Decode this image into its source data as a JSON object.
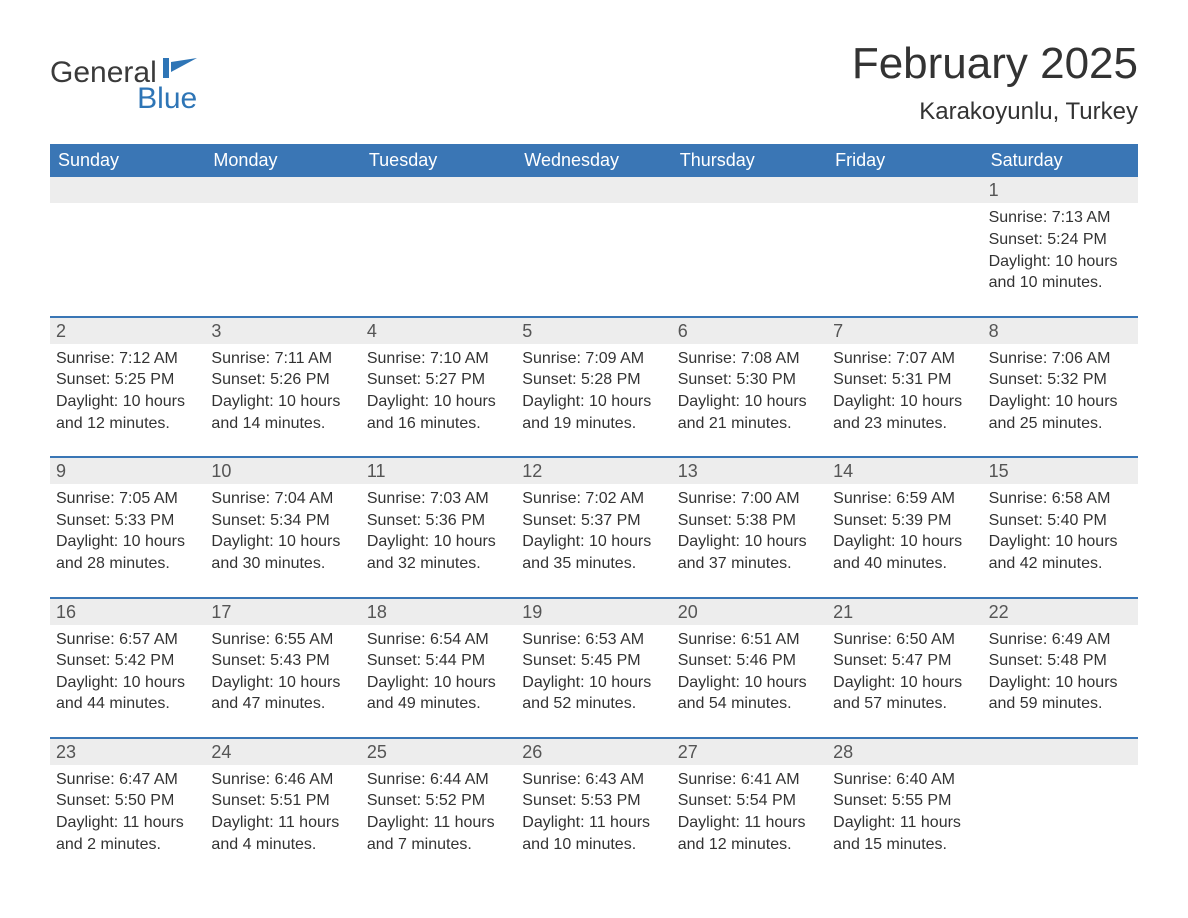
{
  "logo": {
    "general": "General",
    "blue": "Blue",
    "flag_color": "#2e75b6"
  },
  "title": "February 2025",
  "location": "Karakoyunlu, Turkey",
  "header_bg": "#3a76b5",
  "header_text_color": "#ffffff",
  "daynum_bg": "#ededed",
  "week_border_color": "#3a76b5",
  "weekdays": [
    "Sunday",
    "Monday",
    "Tuesday",
    "Wednesday",
    "Thursday",
    "Friday",
    "Saturday"
  ],
  "weeks": [
    [
      {
        "n": null
      },
      {
        "n": null
      },
      {
        "n": null
      },
      {
        "n": null
      },
      {
        "n": null
      },
      {
        "n": null
      },
      {
        "n": 1,
        "sunrise": "Sunrise: 7:13 AM",
        "sunset": "Sunset: 5:24 PM",
        "day1": "Daylight: 10 hours",
        "day2": "and 10 minutes."
      }
    ],
    [
      {
        "n": 2,
        "sunrise": "Sunrise: 7:12 AM",
        "sunset": "Sunset: 5:25 PM",
        "day1": "Daylight: 10 hours",
        "day2": "and 12 minutes."
      },
      {
        "n": 3,
        "sunrise": "Sunrise: 7:11 AM",
        "sunset": "Sunset: 5:26 PM",
        "day1": "Daylight: 10 hours",
        "day2": "and 14 minutes."
      },
      {
        "n": 4,
        "sunrise": "Sunrise: 7:10 AM",
        "sunset": "Sunset: 5:27 PM",
        "day1": "Daylight: 10 hours",
        "day2": "and 16 minutes."
      },
      {
        "n": 5,
        "sunrise": "Sunrise: 7:09 AM",
        "sunset": "Sunset: 5:28 PM",
        "day1": "Daylight: 10 hours",
        "day2": "and 19 minutes."
      },
      {
        "n": 6,
        "sunrise": "Sunrise: 7:08 AM",
        "sunset": "Sunset: 5:30 PM",
        "day1": "Daylight: 10 hours",
        "day2": "and 21 minutes."
      },
      {
        "n": 7,
        "sunrise": "Sunrise: 7:07 AM",
        "sunset": "Sunset: 5:31 PM",
        "day1": "Daylight: 10 hours",
        "day2": "and 23 minutes."
      },
      {
        "n": 8,
        "sunrise": "Sunrise: 7:06 AM",
        "sunset": "Sunset: 5:32 PM",
        "day1": "Daylight: 10 hours",
        "day2": "and 25 minutes."
      }
    ],
    [
      {
        "n": 9,
        "sunrise": "Sunrise: 7:05 AM",
        "sunset": "Sunset: 5:33 PM",
        "day1": "Daylight: 10 hours",
        "day2": "and 28 minutes."
      },
      {
        "n": 10,
        "sunrise": "Sunrise: 7:04 AM",
        "sunset": "Sunset: 5:34 PM",
        "day1": "Daylight: 10 hours",
        "day2": "and 30 minutes."
      },
      {
        "n": 11,
        "sunrise": "Sunrise: 7:03 AM",
        "sunset": "Sunset: 5:36 PM",
        "day1": "Daylight: 10 hours",
        "day2": "and 32 minutes."
      },
      {
        "n": 12,
        "sunrise": "Sunrise: 7:02 AM",
        "sunset": "Sunset: 5:37 PM",
        "day1": "Daylight: 10 hours",
        "day2": "and 35 minutes."
      },
      {
        "n": 13,
        "sunrise": "Sunrise: 7:00 AM",
        "sunset": "Sunset: 5:38 PM",
        "day1": "Daylight: 10 hours",
        "day2": "and 37 minutes."
      },
      {
        "n": 14,
        "sunrise": "Sunrise: 6:59 AM",
        "sunset": "Sunset: 5:39 PM",
        "day1": "Daylight: 10 hours",
        "day2": "and 40 minutes."
      },
      {
        "n": 15,
        "sunrise": "Sunrise: 6:58 AM",
        "sunset": "Sunset: 5:40 PM",
        "day1": "Daylight: 10 hours",
        "day2": "and 42 minutes."
      }
    ],
    [
      {
        "n": 16,
        "sunrise": "Sunrise: 6:57 AM",
        "sunset": "Sunset: 5:42 PM",
        "day1": "Daylight: 10 hours",
        "day2": "and 44 minutes."
      },
      {
        "n": 17,
        "sunrise": "Sunrise: 6:55 AM",
        "sunset": "Sunset: 5:43 PM",
        "day1": "Daylight: 10 hours",
        "day2": "and 47 minutes."
      },
      {
        "n": 18,
        "sunrise": "Sunrise: 6:54 AM",
        "sunset": "Sunset: 5:44 PM",
        "day1": "Daylight: 10 hours",
        "day2": "and 49 minutes."
      },
      {
        "n": 19,
        "sunrise": "Sunrise: 6:53 AM",
        "sunset": "Sunset: 5:45 PM",
        "day1": "Daylight: 10 hours",
        "day2": "and 52 minutes."
      },
      {
        "n": 20,
        "sunrise": "Sunrise: 6:51 AM",
        "sunset": "Sunset: 5:46 PM",
        "day1": "Daylight: 10 hours",
        "day2": "and 54 minutes."
      },
      {
        "n": 21,
        "sunrise": "Sunrise: 6:50 AM",
        "sunset": "Sunset: 5:47 PM",
        "day1": "Daylight: 10 hours",
        "day2": "and 57 minutes."
      },
      {
        "n": 22,
        "sunrise": "Sunrise: 6:49 AM",
        "sunset": "Sunset: 5:48 PM",
        "day1": "Daylight: 10 hours",
        "day2": "and 59 minutes."
      }
    ],
    [
      {
        "n": 23,
        "sunrise": "Sunrise: 6:47 AM",
        "sunset": "Sunset: 5:50 PM",
        "day1": "Daylight: 11 hours",
        "day2": "and 2 minutes."
      },
      {
        "n": 24,
        "sunrise": "Sunrise: 6:46 AM",
        "sunset": "Sunset: 5:51 PM",
        "day1": "Daylight: 11 hours",
        "day2": "and 4 minutes."
      },
      {
        "n": 25,
        "sunrise": "Sunrise: 6:44 AM",
        "sunset": "Sunset: 5:52 PM",
        "day1": "Daylight: 11 hours",
        "day2": "and 7 minutes."
      },
      {
        "n": 26,
        "sunrise": "Sunrise: 6:43 AM",
        "sunset": "Sunset: 5:53 PM",
        "day1": "Daylight: 11 hours",
        "day2": "and 10 minutes."
      },
      {
        "n": 27,
        "sunrise": "Sunrise: 6:41 AM",
        "sunset": "Sunset: 5:54 PM",
        "day1": "Daylight: 11 hours",
        "day2": "and 12 minutes."
      },
      {
        "n": 28,
        "sunrise": "Sunrise: 6:40 AM",
        "sunset": "Sunset: 5:55 PM",
        "day1": "Daylight: 11 hours",
        "day2": "and 15 minutes."
      },
      {
        "n": null
      }
    ]
  ]
}
